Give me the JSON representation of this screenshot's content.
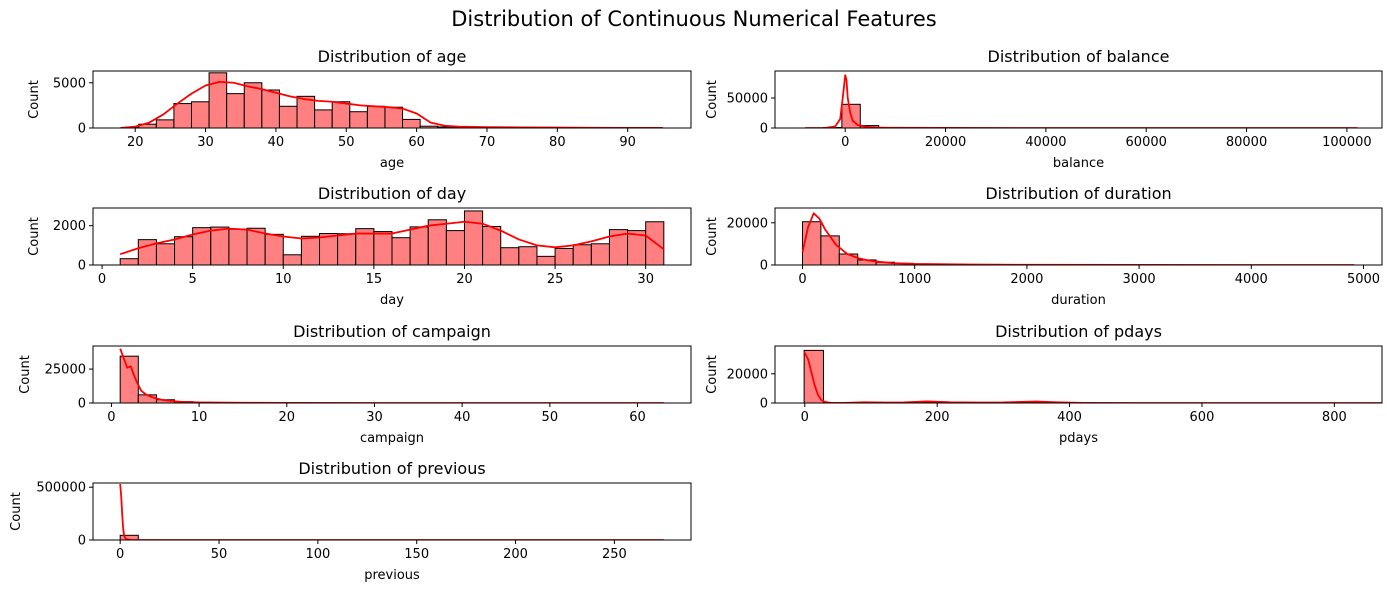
{
  "figure_title": "Distribution of Continuous Numerical Features",
  "colors": {
    "bar_fill": "#ff8080",
    "bar_edge": "#000000",
    "kde_line": "#ff0000",
    "axes": "#000000"
  },
  "chart_data": [
    {
      "type": "bar",
      "kind": "histogram_with_kde",
      "title": "Distribution of age",
      "xlabel": "age",
      "ylabel": "Count",
      "xlim": [
        14,
        99
      ],
      "ylim": [
        0,
        6300
      ],
      "xticks": [
        20,
        30,
        40,
        50,
        60,
        70,
        80,
        90
      ],
      "yticks": [
        0,
        5000
      ],
      "bins": {
        "edges": [
          18,
          20.5,
          23,
          25.5,
          28,
          30.5,
          33,
          35.5,
          38,
          40.5,
          43,
          45.5,
          48,
          50.5,
          53,
          55.5,
          58,
          60.5,
          63,
          65.5,
          68,
          70.5,
          73,
          75.5,
          78,
          80.5,
          83,
          85.5,
          88,
          90.5,
          93,
          95
        ],
        "counts": [
          60,
          420,
          900,
          2700,
          2900,
          6100,
          3800,
          5000,
          4200,
          2400,
          3500,
          2000,
          2900,
          1800,
          2400,
          2300,
          950,
          200,
          120,
          110,
          90,
          70,
          55,
          40,
          30,
          20,
          15,
          10,
          8,
          5,
          2
        ]
      },
      "kde": {
        "x": [
          18,
          20,
          22,
          24,
          26,
          28,
          30,
          32,
          34,
          36,
          38,
          40,
          42,
          44,
          46,
          48,
          50,
          52,
          54,
          56,
          58,
          60,
          62,
          64,
          66,
          70,
          75,
          80,
          85,
          90,
          95
        ],
        "y": [
          5,
          150,
          600,
          1500,
          2700,
          3800,
          4700,
          5100,
          5000,
          4600,
          4300,
          3900,
          3500,
          3200,
          3000,
          2900,
          2700,
          2500,
          2400,
          2300,
          2150,
          1600,
          600,
          250,
          150,
          100,
          70,
          50,
          30,
          15,
          5
        ]
      }
    },
    {
      "type": "bar",
      "kind": "histogram_with_kde",
      "title": "Distribution of balance",
      "xlabel": "balance",
      "ylabel": "Count",
      "xlim": [
        -14000,
        107000
      ],
      "ylim": [
        0,
        95000
      ],
      "xticks": [
        0,
        20000,
        40000,
        60000,
        80000,
        100000
      ],
      "yticks": [
        0,
        50000
      ],
      "bins": {
        "edges": [
          -8019,
          -4345,
          -671,
          3003,
          6677,
          10351,
          14025,
          17699,
          21373,
          25047,
          28721,
          32395,
          36069,
          39743,
          43417,
          47091,
          50765,
          54439,
          58113,
          61787,
          65461,
          69135,
          72809,
          76483,
          80157,
          83831,
          87505,
          91179,
          94853,
          98527,
          102127
        ],
        "counts": [
          5,
          800,
          39500,
          4000,
          700,
          300,
          120,
          60,
          40,
          30,
          20,
          15,
          10,
          8,
          6,
          5,
          4,
          3,
          3,
          2,
          2,
          1,
          1,
          1,
          1,
          1,
          1,
          1,
          1,
          1
        ]
      },
      "kde": {
        "x": [
          -8019,
          -4000,
          -2000,
          -1000,
          -500,
          0,
          250,
          500,
          1000,
          1500,
          2500,
          4000,
          6000,
          10000,
          20000,
          40000,
          60000,
          80000,
          102127
        ],
        "y": [
          0,
          200,
          2500,
          15000,
          50000,
          88000,
          80000,
          50000,
          25000,
          12000,
          5000,
          2000,
          800,
          300,
          100,
          30,
          10,
          5,
          0
        ]
      }
    },
    {
      "type": "bar",
      "kind": "histogram_with_kde",
      "title": "Distribution of day",
      "xlabel": "day",
      "ylabel": "Count",
      "xlim": [
        -0.5,
        32.5
      ],
      "ylim": [
        0,
        2900
      ],
      "xticks": [
        0,
        5,
        10,
        15,
        20,
        25,
        30
      ],
      "yticks": [
        0,
        2000
      ],
      "bins": {
        "edges": [
          1,
          2,
          3,
          4,
          5,
          6,
          7,
          8,
          9,
          10,
          11,
          12,
          13,
          14,
          15,
          16,
          17,
          18,
          19,
          20,
          21,
          22,
          23,
          24,
          25,
          26,
          27,
          28,
          29,
          30,
          31
        ],
        "counts": [
          320,
          1290,
          1080,
          1440,
          1900,
          1930,
          1820,
          1870,
          1560,
          520,
          1460,
          1600,
          1590,
          1850,
          1700,
          1390,
          1940,
          2300,
          1750,
          2750,
          1960,
          880,
          930,
          440,
          840,
          1030,
          1080,
          1800,
          1750,
          2200
        ]
      },
      "kde": {
        "x": [
          1,
          2,
          3,
          4,
          5,
          6,
          7,
          8,
          9,
          10,
          11,
          12,
          13,
          14,
          15,
          16,
          17,
          18,
          19,
          20,
          21,
          22,
          23,
          24,
          25,
          26,
          27,
          28,
          29,
          30,
          31
        ],
        "y": [
          550,
          850,
          1100,
          1300,
          1550,
          1750,
          1850,
          1800,
          1600,
          1450,
          1350,
          1400,
          1500,
          1600,
          1600,
          1600,
          1800,
          2000,
          2100,
          2200,
          2100,
          1750,
          1300,
          1000,
          900,
          1000,
          1200,
          1450,
          1600,
          1500,
          800
        ]
      }
    },
    {
      "type": "bar",
      "kind": "histogram_with_kde",
      "title": "Distribution of duration",
      "xlabel": "duration",
      "ylabel": "Count",
      "xlim": [
        -245,
        5165
      ],
      "ylim": [
        0,
        27000
      ],
      "xticks": [
        0,
        1000,
        2000,
        3000,
        4000,
        5000
      ],
      "yticks": [
        0,
        20000
      ],
      "bins": {
        "edges": [
          0,
          164,
          328,
          492,
          656,
          820,
          984,
          1148,
          1312,
          1476,
          1640,
          1804,
          1968,
          2132,
          2296,
          2460,
          2624,
          2788,
          2952,
          3116,
          3280,
          3444,
          3608,
          3772,
          3936,
          4100,
          4264,
          4428,
          4592,
          4756,
          4918
        ],
        "counts": [
          20500,
          13800,
          5200,
          2400,
          1300,
          800,
          450,
          280,
          170,
          110,
          70,
          50,
          35,
          25,
          18,
          12,
          9,
          7,
          5,
          4,
          3,
          2,
          2,
          1,
          1,
          1,
          1,
          1,
          1,
          1
        ]
      },
      "kde": {
        "x": [
          0,
          50,
          100,
          150,
          200,
          300,
          400,
          500,
          600,
          800,
          1000,
          1500,
          2000,
          3000,
          4000,
          4918
        ],
        "y": [
          6000,
          18000,
          24500,
          22000,
          17000,
          9500,
          5200,
          3200,
          2000,
          900,
          500,
          200,
          80,
          20,
          5,
          0
        ]
      }
    },
    {
      "type": "bar",
      "kind": "histogram_with_kde",
      "title": "Distribution of campaign",
      "xlabel": "campaign",
      "ylabel": "Count",
      "xlim": [
        -2.1,
        66.1
      ],
      "ylim": [
        0,
        42000
      ],
      "xticks": [
        0,
        10,
        20,
        30,
        40,
        50,
        60
      ],
      "yticks": [
        0,
        25000
      ],
      "bins": {
        "edges": [
          1,
          3.067,
          5.133,
          7.2,
          9.267,
          11.333,
          13.4,
          15.467,
          17.533,
          19.6,
          21.667,
          23.733,
          25.8,
          27.867,
          29.933,
          32,
          34.067,
          36.133,
          38.2,
          40.267,
          42.333,
          44.4,
          46.467,
          48.533,
          50.6,
          52.667,
          54.733,
          56.8,
          58.867,
          60.933,
          63
        ],
        "counts": [
          34500,
          6000,
          2400,
          1000,
          500,
          350,
          200,
          150,
          100,
          80,
          50,
          40,
          30,
          20,
          15,
          10,
          8,
          6,
          5,
          4,
          3,
          2,
          2,
          1,
          1,
          1,
          1,
          1,
          1,
          1
        ]
      },
      "kde": {
        "x": [
          1,
          1.4,
          1.8,
          2.2,
          2.6,
          3,
          3.4,
          4,
          5,
          6,
          8,
          10,
          15,
          20,
          30,
          40,
          50,
          63
        ],
        "y": [
          40000,
          33000,
          26000,
          27000,
          20000,
          14000,
          9000,
          6000,
          3500,
          2000,
          800,
          400,
          150,
          60,
          20,
          8,
          3,
          0
        ]
      }
    },
    {
      "type": "bar",
      "kind": "histogram_with_kde",
      "title": "Distribution of pdays",
      "xlabel": "pdays",
      "ylabel": "Count",
      "xlim": [
        -45,
        872
      ],
      "ylim": [
        0,
        39000
      ],
      "xticks": [
        0,
        200,
        400,
        600,
        800
      ],
      "yticks": [
        0,
        20000
      ],
      "bins": {
        "edges": [
          -1,
          28.23,
          57.47,
          86.7,
          115.93,
          145.17,
          174.4,
          203.63,
          232.87,
          262.1,
          291.33,
          320.57,
          349.8,
          379.03,
          408.27,
          437.5,
          466.73,
          495.97,
          525.2,
          554.43,
          583.67,
          612.9,
          642.13,
          671.37,
          700.6,
          729.83,
          759.07,
          788.3,
          817.53,
          846.77,
          871
        ],
        "counts": [
          36000,
          40,
          100,
          380,
          220,
          200,
          550,
          350,
          200,
          260,
          300,
          420,
          500,
          100,
          30,
          20,
          15,
          10,
          8,
          6,
          5,
          4,
          3,
          3,
          2,
          2,
          1,
          1,
          1,
          1
        ]
      },
      "kde": {
        "x": [
          -1,
          5,
          10,
          15,
          20,
          25,
          30,
          40,
          60,
          90,
          120,
          150,
          185,
          220,
          260,
          300,
          350,
          380,
          420,
          500,
          600,
          700,
          871
        ],
        "y": [
          35000,
          30000,
          21000,
          12000,
          5500,
          2000,
          800,
          100,
          80,
          500,
          300,
          400,
          1100,
          500,
          350,
          400,
          1000,
          500,
          100,
          20,
          10,
          5,
          0
        ]
      }
    },
    {
      "type": "bar",
      "kind": "histogram_with_kde",
      "title": "Distribution of previous",
      "xlabel": "previous",
      "ylabel": "Count",
      "xlim": [
        -13.75,
        288.75
      ],
      "ylim": [
        0,
        540000
      ],
      "xticks": [
        0,
        50,
        100,
        150,
        200,
        250
      ],
      "yticks": [
        0,
        500000
      ],
      "bins": {
        "edges": [
          0,
          9.167,
          18.333,
          27.5,
          36.667,
          45.833,
          55,
          64.167,
          73.333,
          82.5,
          91.667,
          100.833,
          110,
          119.167,
          128.333,
          137.5,
          146.667,
          155.833,
          165,
          174.167,
          183.333,
          192.5,
          201.667,
          210.833,
          220,
          229.167,
          238.333,
          247.5,
          256.667,
          265.833,
          275
        ],
        "counts": [
          44500,
          300,
          60,
          20,
          8,
          5,
          3,
          2,
          1,
          1,
          1,
          1,
          1,
          1,
          1,
          1,
          1,
          1,
          1,
          1,
          1,
          1,
          1,
          1,
          1,
          1,
          1,
          1,
          1,
          1
        ]
      },
      "kde": {
        "x": [
          0,
          0.5,
          1,
          1.5,
          2,
          3,
          5,
          10,
          20,
          50,
          100,
          200,
          275
        ],
        "y": [
          530000,
          420000,
          250000,
          110000,
          40000,
          8000,
          1500,
          300,
          80,
          20,
          5,
          2,
          0
        ]
      }
    }
  ]
}
